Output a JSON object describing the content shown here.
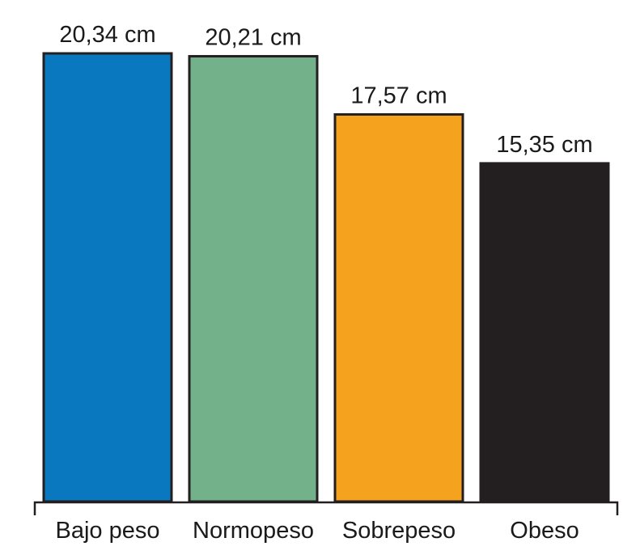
{
  "chart_data": {
    "type": "bar",
    "categories": [
      "Bajo peso",
      "Normopeso",
      "Sobrepeso",
      "Obeso"
    ],
    "values": [
      20.34,
      20.21,
      17.57,
      15.35
    ],
    "value_labels": [
      "20,34 cm",
      "20,21 cm",
      "17,57 cm",
      "15,35 cm"
    ],
    "colors": [
      "#0a78bf",
      "#73b18b",
      "#f5a31f",
      "#231f20"
    ],
    "ylim": [
      0,
      20.34
    ],
    "grid": false,
    "legend": "none",
    "title": "",
    "xlabel": "",
    "ylabel": ""
  }
}
